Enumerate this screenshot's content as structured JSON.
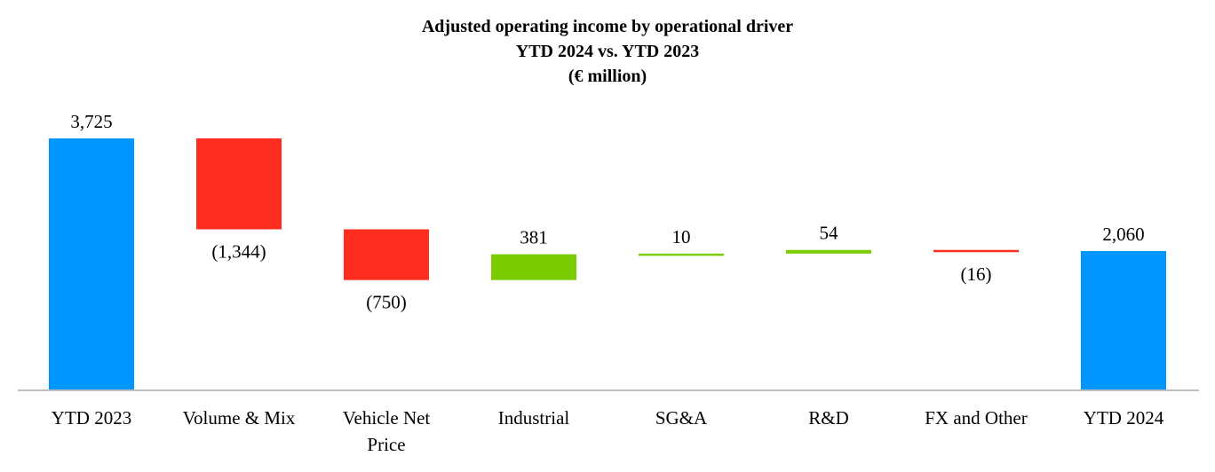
{
  "chart_data": {
    "type": "waterfall",
    "title": [
      "Adjusted operating income by operational driver",
      "YTD 2024 vs. YTD 2023",
      "(€ million)"
    ],
    "categories": [
      "YTD 2023",
      "Volume & Mix",
      "Vehicle Net Price",
      "Industrial",
      "SG&A",
      "R&D",
      "FX and Other",
      "YTD 2024"
    ],
    "values": [
      3725,
      -1344,
      -750,
      381,
      10,
      54,
      -16,
      2060
    ],
    "kinds": [
      "total",
      "delta",
      "delta",
      "delta",
      "delta",
      "delta",
      "delta",
      "total"
    ],
    "data_labels": [
      "3,725",
      "(1,344)",
      "(750)",
      "381",
      "10",
      "54",
      "(16)",
      "2,060"
    ],
    "xlabel": "",
    "ylabel": "",
    "ylim": [
      0,
      3725
    ],
    "grid": false,
    "colors": {
      "total": "#0096FF",
      "decrease": "#FF2D20",
      "increase": "#7ACC00",
      "axis": "#BFBFBF"
    }
  }
}
